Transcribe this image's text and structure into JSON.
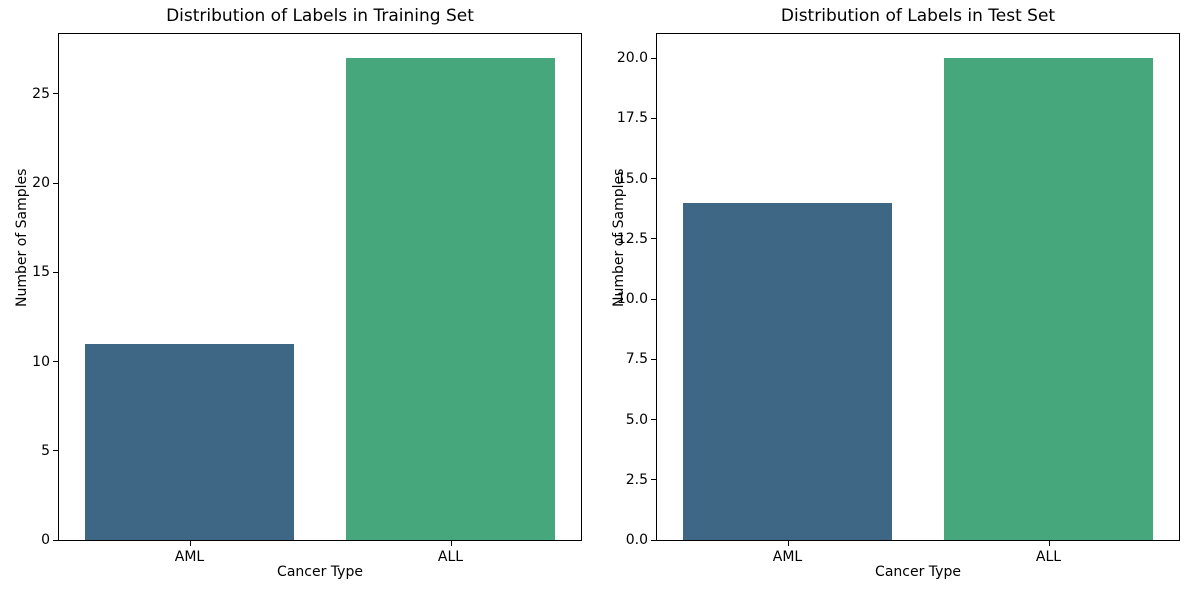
{
  "figure": {
    "background": "#ffffff",
    "frame_color": "#000000"
  },
  "chart_data": [
    {
      "type": "bar",
      "title": "Distribution of Labels in Training Set",
      "categories": [
        "AML",
        "ALL"
      ],
      "values": [
        11,
        27
      ],
      "xlabel": "Cancer Type",
      "ylabel": "Number of Samples",
      "ylim": [
        0,
        28.35
      ],
      "yticks": [
        0,
        5,
        10,
        15,
        20,
        25
      ],
      "ytick_labels": [
        "0",
        "5",
        "10",
        "15",
        "20",
        "25"
      ],
      "bar_colors": [
        "#3e6685",
        "#46a77c"
      ],
      "bar_width_fraction": 0.8,
      "grid": false,
      "legend": "none"
    },
    {
      "type": "bar",
      "title": "Distribution of Labels in Test Set",
      "categories": [
        "AML",
        "ALL"
      ],
      "values": [
        14,
        20
      ],
      "xlabel": "Cancer Type",
      "ylabel": "Number of Samples",
      "ylim": [
        0,
        21
      ],
      "yticks": [
        0,
        2.5,
        5,
        7.5,
        10,
        12.5,
        15,
        17.5,
        20
      ],
      "ytick_labels": [
        "0.0",
        "2.5",
        "5.0",
        "7.5",
        "10.0",
        "12.5",
        "15.0",
        "17.5",
        "20.0"
      ],
      "bar_colors": [
        "#3e6685",
        "#46a77c"
      ],
      "bar_width_fraction": 0.8,
      "grid": false,
      "legend": "none"
    }
  ]
}
